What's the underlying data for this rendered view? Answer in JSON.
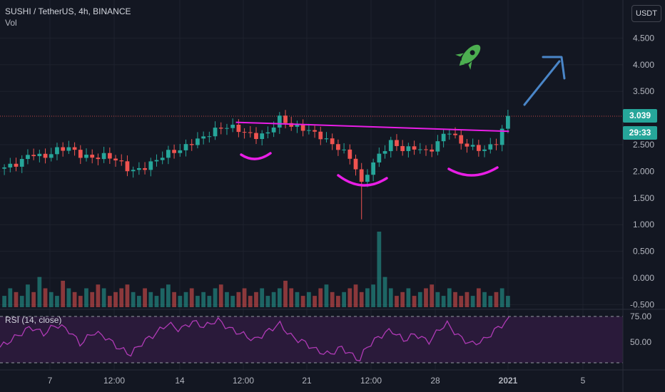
{
  "header": {
    "symbol_line": "SUSHI / TetherUS, 4h, BINANCE",
    "volume_label": "Vol"
  },
  "currency_button": "USDT",
  "price_label": "3.039",
  "countdown_label": "29:33",
  "rsi_label": "RSI (14, close)",
  "colors": {
    "background": "#131722",
    "up": "#26a69a",
    "down": "#ef5350",
    "trendline": "#e91ee6",
    "arrow": "#4a86c8",
    "rocket": "#4caf50",
    "rsi_line": "#b03ab6",
    "rsi_band": "#2a1a3a"
  },
  "icons": {
    "rocket": "rocket-icon",
    "arrow": "up-right-arrow-icon"
  },
  "chart_data": {
    "type": "candlestick",
    "price_axis": {
      "ticks": [
        "4.500",
        "4.000",
        "3.500",
        "3.039",
        "2.500",
        "2.000",
        "1.500",
        "1.000",
        "0.500",
        "0.000",
        "-0.500"
      ],
      "ylim": [
        -0.5,
        5.0
      ]
    },
    "rsi_axis": {
      "ticks": [
        "75.00",
        "50.00"
      ],
      "ylim": [
        30,
        75
      ]
    },
    "x_ticks": [
      "7",
      "12:00",
      "14",
      "12:00",
      "21",
      "12:00",
      "28",
      "2021",
      "5"
    ],
    "last_price": 3.039,
    "trendline": {
      "start": {
        "x": 0.38,
        "y": 2.92
      },
      "end": {
        "x": 0.82,
        "y": 2.75
      }
    },
    "candles_close_path": [
      {
        "x": 0.0,
        "y": 2.05
      },
      {
        "x": 0.03,
        "y": 2.15
      },
      {
        "x": 0.05,
        "y": 2.35
      },
      {
        "x": 0.07,
        "y": 2.25
      },
      {
        "x": 0.09,
        "y": 2.4
      },
      {
        "x": 0.11,
        "y": 2.45
      },
      {
        "x": 0.13,
        "y": 2.3
      },
      {
        "x": 0.15,
        "y": 2.25
      },
      {
        "x": 0.17,
        "y": 2.3
      },
      {
        "x": 0.19,
        "y": 2.2
      },
      {
        "x": 0.21,
        "y": 2.0
      },
      {
        "x": 0.23,
        "y": 2.05
      },
      {
        "x": 0.25,
        "y": 2.2
      },
      {
        "x": 0.27,
        "y": 2.35
      },
      {
        "x": 0.29,
        "y": 2.4
      },
      {
        "x": 0.31,
        "y": 2.55
      },
      {
        "x": 0.33,
        "y": 2.65
      },
      {
        "x": 0.35,
        "y": 2.8
      },
      {
        "x": 0.37,
        "y": 2.85
      },
      {
        "x": 0.39,
        "y": 2.75
      },
      {
        "x": 0.41,
        "y": 2.65
      },
      {
        "x": 0.43,
        "y": 2.7
      },
      {
        "x": 0.45,
        "y": 3.0
      },
      {
        "x": 0.47,
        "y": 2.85
      },
      {
        "x": 0.49,
        "y": 2.8
      },
      {
        "x": 0.51,
        "y": 2.7
      },
      {
        "x": 0.53,
        "y": 2.55
      },
      {
        "x": 0.55,
        "y": 2.4
      },
      {
        "x": 0.57,
        "y": 2.2
      },
      {
        "x": 0.58,
        "y": 1.7
      },
      {
        "x": 0.59,
        "y": 1.95
      },
      {
        "x": 0.61,
        "y": 2.3
      },
      {
        "x": 0.63,
        "y": 2.55
      },
      {
        "x": 0.65,
        "y": 2.4
      },
      {
        "x": 0.67,
        "y": 2.45
      },
      {
        "x": 0.69,
        "y": 2.35
      },
      {
        "x": 0.71,
        "y": 2.6
      },
      {
        "x": 0.72,
        "y": 2.8
      },
      {
        "x": 0.74,
        "y": 2.55
      },
      {
        "x": 0.76,
        "y": 2.45
      },
      {
        "x": 0.78,
        "y": 2.4
      },
      {
        "x": 0.8,
        "y": 2.55
      },
      {
        "x": 0.82,
        "y": 3.04
      }
    ],
    "rsi": [
      {
        "x": 0.0,
        "y": 45
      },
      {
        "x": 0.03,
        "y": 57
      },
      {
        "x": 0.05,
        "y": 65
      },
      {
        "x": 0.07,
        "y": 58
      },
      {
        "x": 0.09,
        "y": 67
      },
      {
        "x": 0.11,
        "y": 62
      },
      {
        "x": 0.13,
        "y": 48
      },
      {
        "x": 0.15,
        "y": 60
      },
      {
        "x": 0.17,
        "y": 55
      },
      {
        "x": 0.19,
        "y": 45
      },
      {
        "x": 0.21,
        "y": 38
      },
      {
        "x": 0.23,
        "y": 50
      },
      {
        "x": 0.25,
        "y": 58
      },
      {
        "x": 0.27,
        "y": 68
      },
      {
        "x": 0.29,
        "y": 62
      },
      {
        "x": 0.31,
        "y": 70
      },
      {
        "x": 0.33,
        "y": 65
      },
      {
        "x": 0.35,
        "y": 72
      },
      {
        "x": 0.37,
        "y": 63
      },
      {
        "x": 0.39,
        "y": 58
      },
      {
        "x": 0.41,
        "y": 52
      },
      {
        "x": 0.43,
        "y": 60
      },
      {
        "x": 0.45,
        "y": 68
      },
      {
        "x": 0.47,
        "y": 55
      },
      {
        "x": 0.49,
        "y": 50
      },
      {
        "x": 0.51,
        "y": 42
      },
      {
        "x": 0.53,
        "y": 38
      },
      {
        "x": 0.55,
        "y": 45
      },
      {
        "x": 0.57,
        "y": 36
      },
      {
        "x": 0.58,
        "y": 33
      },
      {
        "x": 0.59,
        "y": 45
      },
      {
        "x": 0.61,
        "y": 55
      },
      {
        "x": 0.63,
        "y": 62
      },
      {
        "x": 0.65,
        "y": 52
      },
      {
        "x": 0.67,
        "y": 58
      },
      {
        "x": 0.69,
        "y": 50
      },
      {
        "x": 0.71,
        "y": 64
      },
      {
        "x": 0.72,
        "y": 68
      },
      {
        "x": 0.74,
        "y": 55
      },
      {
        "x": 0.76,
        "y": 48
      },
      {
        "x": 0.78,
        "y": 52
      },
      {
        "x": 0.8,
        "y": 63
      },
      {
        "x": 0.82,
        "y": 72
      }
    ],
    "volume_relative": [
      0.3,
      0.5,
      0.4,
      0.3,
      0.6,
      0.4,
      0.8,
      0.5,
      0.4,
      0.3,
      0.7,
      0.5,
      0.4,
      0.3,
      0.5,
      0.4,
      0.6,
      0.5,
      0.3,
      0.4,
      0.5,
      0.6,
      0.4,
      0.3,
      0.5,
      0.4,
      0.3,
      0.5,
      0.6,
      0.4,
      0.3,
      0.4,
      0.5,
      0.3,
      0.4,
      0.3,
      0.5,
      0.6,
      0.4,
      0.3,
      0.4,
      0.5,
      0.3,
      0.4,
      0.5,
      0.3,
      0.4,
      0.5,
      0.7,
      0.5,
      0.4,
      0.3,
      0.4,
      0.3,
      0.5,
      0.6,
      0.4,
      0.3,
      0.4,
      0.5,
      0.6,
      0.4,
      0.5,
      0.6,
      2.0,
      0.8,
      0.5,
      0.3,
      0.4,
      0.5,
      0.3,
      0.4,
      0.5,
      0.6,
      0.4,
      0.3,
      0.5,
      0.4,
      0.3,
      0.4,
      0.3,
      0.5,
      0.4,
      0.3,
      0.4,
      0.5,
      0.3
    ]
  }
}
